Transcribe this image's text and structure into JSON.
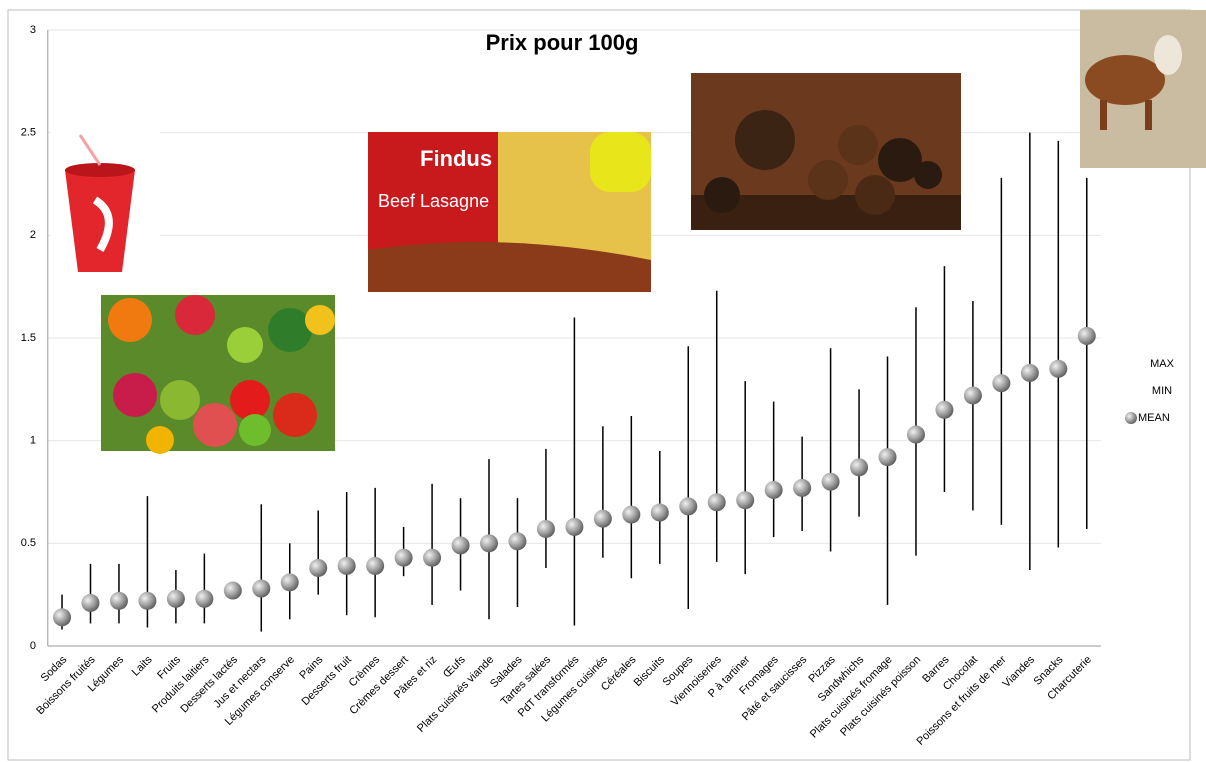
{
  "chart_data": {
    "type": "high-low-mean",
    "title": "Prix pour 100g",
    "categories": [
      "Sodas",
      "Boissons fruités",
      "Légumes",
      "Laits",
      "Fruits",
      "Produits laitiers",
      "Desserts lactés",
      "Jus et nectars",
      "Légumes conserve",
      "Pains",
      "Desserts fruit",
      "Crèmes",
      "Crèmes dessert",
      "Pâtes et riz",
      "Œufs",
      "Plats cuisinés viande",
      "Salades",
      "Tartes salées",
      "PdT transformés",
      "Légumes cuisinés",
      "Céréales",
      "Biscuits",
      "Soupes",
      "Viennoiseries",
      "P à tartiner",
      "Fromages",
      "Pâté et saucisses",
      "Pizzas",
      "Sandwhichs",
      "Plats cuisinés fromage",
      "Plats cuisinés poisson",
      "Barres",
      "Chocolat",
      "Poissons et fruits de mer",
      "Viandes",
      "Snacks",
      "Charcuterie"
    ],
    "series": [
      {
        "name": "MAX",
        "color": "#000000",
        "marker": "none",
        "values": [
          0.25,
          0.4,
          0.4,
          0.73,
          0.37,
          0.45,
          0.31,
          0.69,
          0.5,
          0.66,
          0.75,
          0.77,
          0.58,
          0.79,
          0.72,
          0.91,
          0.72,
          0.96,
          1.6,
          1.07,
          1.12,
          0.95,
          1.46,
          1.73,
          1.29,
          1.19,
          1.02,
          1.45,
          1.25,
          1.41,
          1.65,
          1.85,
          1.68,
          2.28,
          2.5,
          2.46,
          2.28
        ]
      },
      {
        "name": "MIN",
        "color": "#000000",
        "marker": "none",
        "values": [
          0.08,
          0.11,
          0.11,
          0.09,
          0.11,
          0.11,
          0.25,
          0.07,
          0.13,
          0.25,
          0.15,
          0.14,
          0.34,
          0.2,
          0.27,
          0.13,
          0.19,
          0.38,
          0.1,
          0.43,
          0.33,
          0.4,
          0.18,
          0.41,
          0.35,
          0.53,
          0.56,
          0.46,
          0.63,
          0.2,
          0.44,
          0.75,
          0.66,
          0.59,
          0.37,
          0.48,
          0.57
        ]
      },
      {
        "name": "MEAN",
        "color": "#8c8c8c",
        "marker": "sphere",
        "values": [
          0.14,
          0.21,
          0.22,
          0.22,
          0.23,
          0.23,
          0.27,
          0.28,
          0.31,
          0.38,
          0.39,
          0.39,
          0.43,
          0.43,
          0.49,
          0.5,
          0.51,
          0.57,
          0.58,
          0.62,
          0.64,
          0.65,
          0.68,
          0.7,
          0.71,
          0.76,
          0.77,
          0.8,
          0.87,
          0.92,
          1.03,
          1.15,
          1.22,
          1.28,
          1.33,
          1.35,
          1.51
        ]
      }
    ],
    "ylim": [
      0,
      3
    ],
    "yticks": [
      0,
      0.5,
      1,
      1.5,
      2,
      2.5,
      3
    ],
    "grid": true,
    "legend": "right",
    "annotations": [
      "Findus",
      "Beef Lasagne"
    ]
  }
}
